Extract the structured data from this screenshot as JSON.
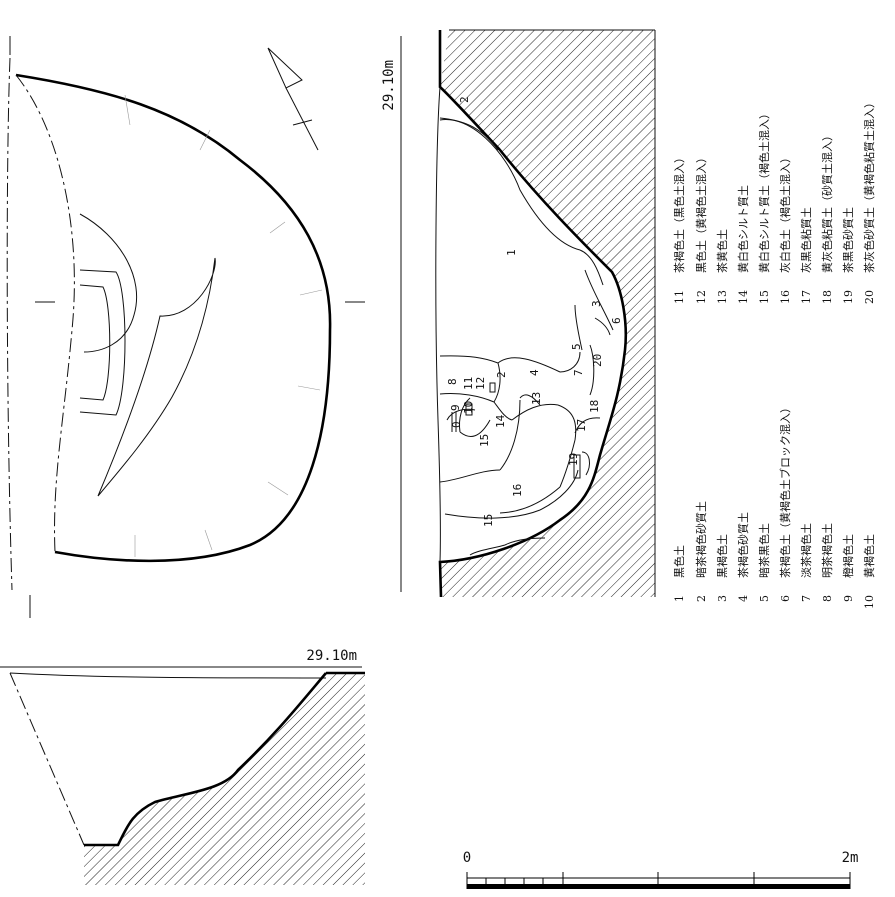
{
  "figure": {
    "elevation_top": "29.10m",
    "elevation_bottom": "29.10m",
    "scale": {
      "start": "0",
      "end": "2m"
    },
    "section_layer_numbers": [
      "2",
      "1",
      "3",
      "6",
      "5",
      "7",
      "4",
      "2",
      "20",
      "8",
      "11",
      "12",
      "13",
      "9",
      "10",
      "0",
      "17",
      "18",
      "14",
      "15",
      "19",
      "16",
      "15"
    ],
    "legend": [
      {
        "no": "1",
        "text": "黒色土"
      },
      {
        "no": "2",
        "text": "暗茶褐色砂質土"
      },
      {
        "no": "3",
        "text": "黒褐色土"
      },
      {
        "no": "4",
        "text": "茶褐色砂質土"
      },
      {
        "no": "5",
        "text": "暗茶黒色土"
      },
      {
        "no": "6",
        "text": "茶褐色土（黄褐色土ブロック混入）"
      },
      {
        "no": "7",
        "text": "淡茶褐色土"
      },
      {
        "no": "8",
        "text": "明茶褐色土"
      },
      {
        "no": "9",
        "text": "橙褐色土"
      },
      {
        "no": "10",
        "text": "黄褐色土"
      },
      {
        "no": "11",
        "text": "茶褐色土（黒色土混入）"
      },
      {
        "no": "12",
        "text": "黒色土（黄褐色土混入）"
      },
      {
        "no": "13",
        "text": "茶黄色土"
      },
      {
        "no": "14",
        "text": "黄白色シルト質土"
      },
      {
        "no": "15",
        "text": "黄白色シルト質土（褐色土混入）"
      },
      {
        "no": "16",
        "text": "灰白色土（褐色土混入）"
      },
      {
        "no": "17",
        "text": "灰黒色粘質土"
      },
      {
        "no": "18",
        "text": "黄灰色粘質土（砂質土混入）"
      },
      {
        "no": "19",
        "text": "茶黒色砂質土"
      },
      {
        "no": "20",
        "text": "茶灰色砂質土（黄褐色粘質土混入）"
      }
    ]
  }
}
